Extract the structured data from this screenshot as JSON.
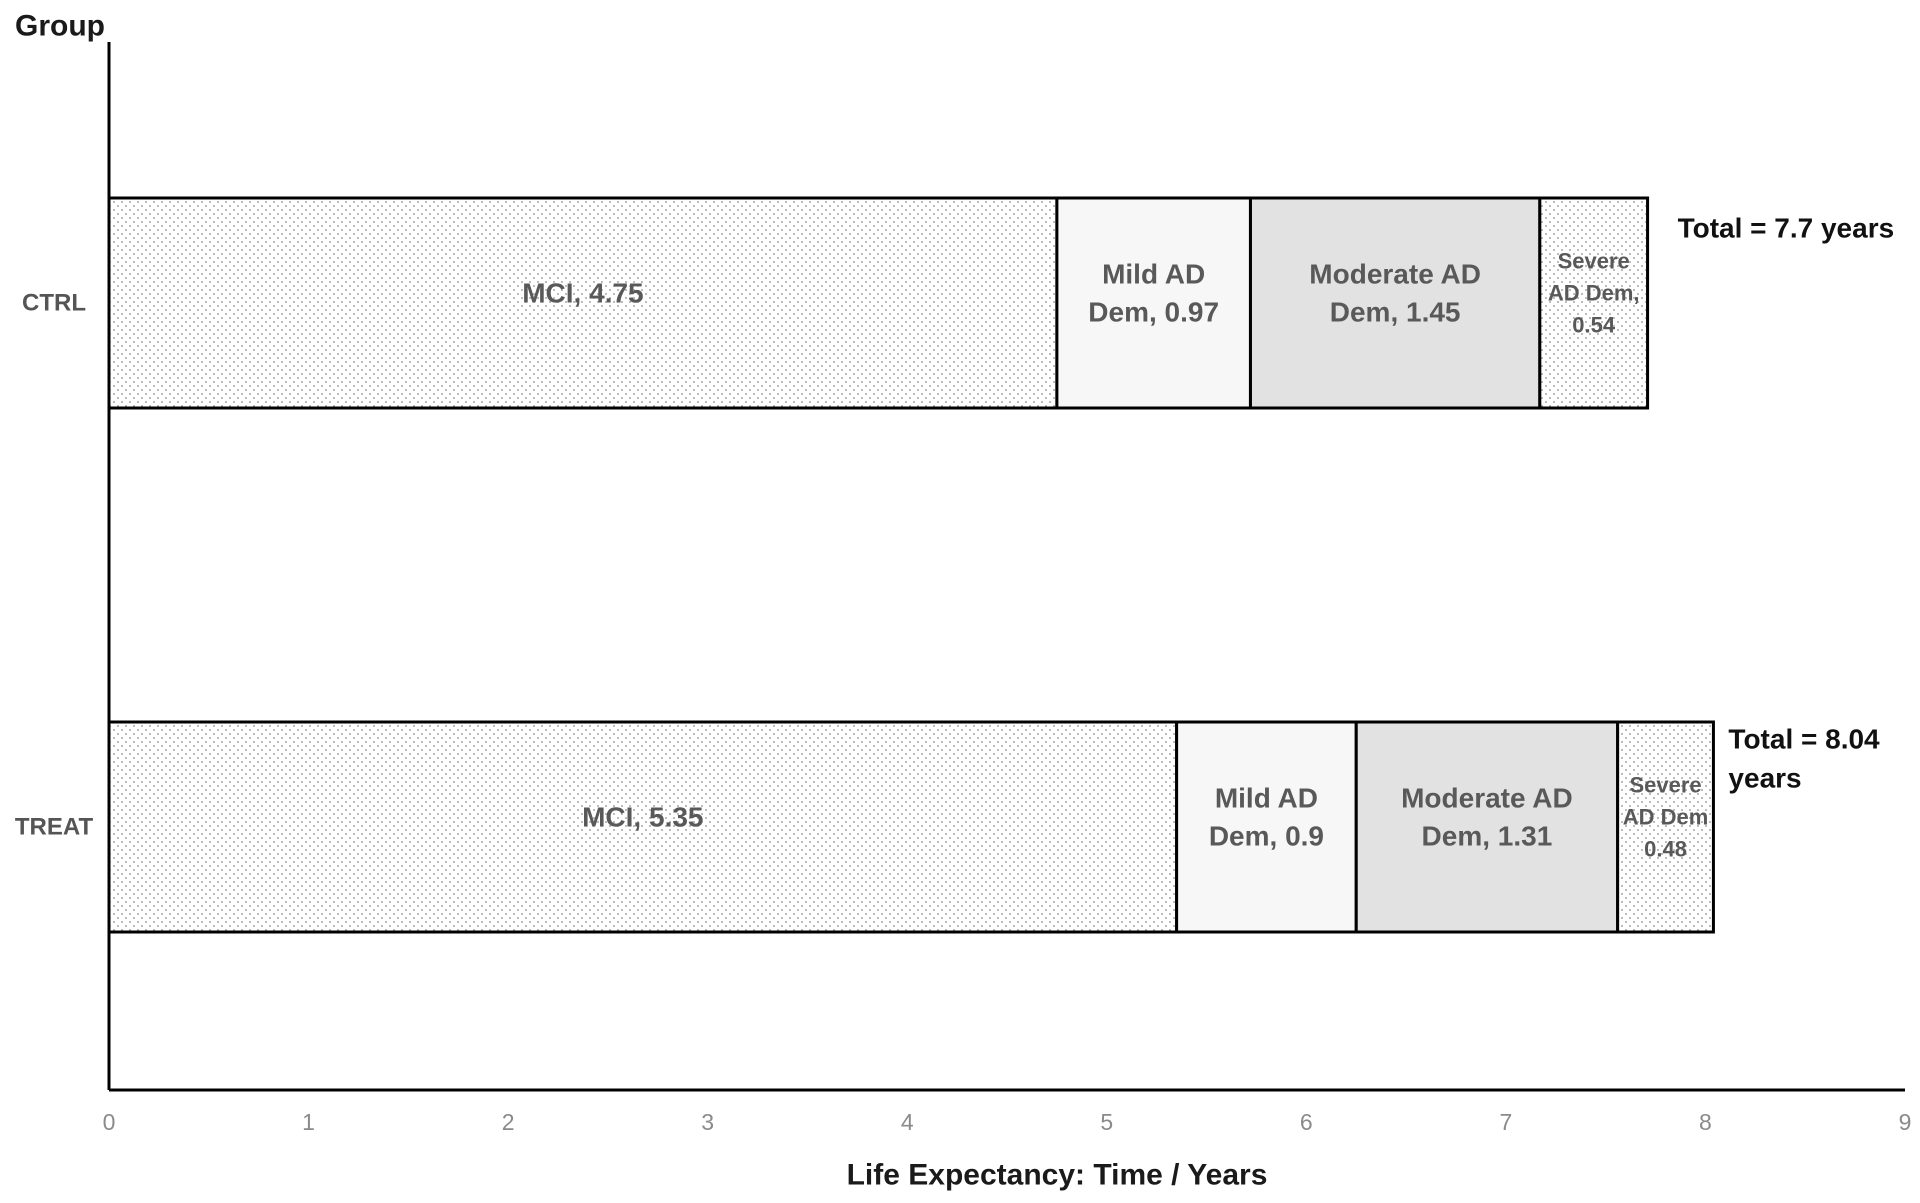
{
  "chart_data": {
    "type": "bar",
    "orientation": "horizontal",
    "stacked": true,
    "title": "",
    "xlabel": "Life Expectancy: Time / Years",
    "ylabel": "Group",
    "xlim": [
      0,
      9
    ],
    "xticks": [
      "0",
      "1",
      "2",
      "3",
      "4",
      "5",
      "6",
      "7",
      "8",
      "9"
    ],
    "categories": [
      "CTRL",
      "TREAT"
    ],
    "grid": false,
    "series": [
      {
        "name": "MCI",
        "values": [
          4.75,
          5.35
        ],
        "fill": "dots",
        "color": "#ffffff"
      },
      {
        "name": "Mild AD Dem",
        "values": [
          0.97,
          0.9
        ],
        "fill": "solid",
        "color": "#f7f7f7"
      },
      {
        "name": "Moderate AD Dem",
        "values": [
          1.45,
          1.31
        ],
        "fill": "solid",
        "color": "#e2e2e2"
      },
      {
        "name": "Severe AD Dem",
        "values": [
          0.54,
          0.48
        ],
        "fill": "dots",
        "color": "#ffffff"
      }
    ],
    "segment_labels": [
      [
        [
          "MCI, 4.75"
        ],
        [
          "Mild AD",
          "Dem, 0.97"
        ],
        [
          "Moderate AD",
          "Dem, 1.45"
        ],
        [
          "Severe",
          "AD Dem,",
          "0.54"
        ]
      ],
      [
        [
          "MCI, 5.35"
        ],
        [
          "Mild AD",
          "Dem, 0.9"
        ],
        [
          "Moderate AD",
          "Dem, 1.31"
        ],
        [
          "Severe",
          "AD Dem",
          "0.48"
        ]
      ]
    ],
    "totals": [
      {
        "value": 7.7,
        "lines": [
          "Total = 7.7 years"
        ]
      },
      {
        "value": 8.04,
        "lines": [
          "Total = 8.04",
          "years"
        ]
      }
    ]
  }
}
